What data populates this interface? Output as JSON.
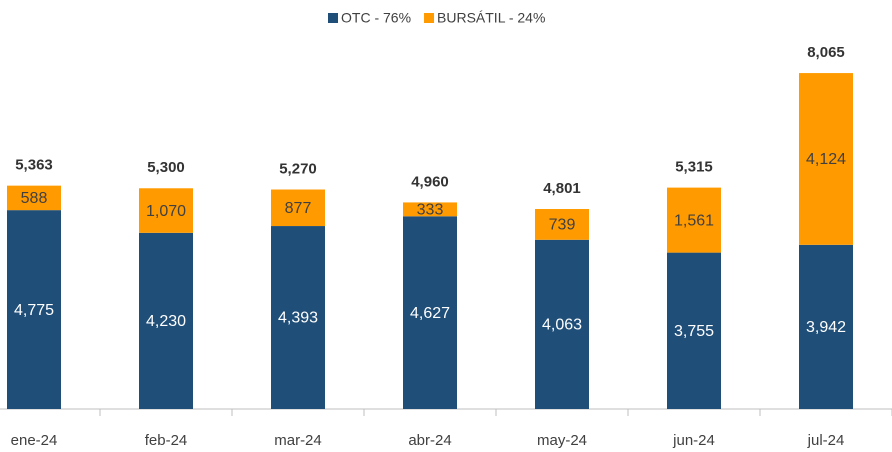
{
  "chart_data": {
    "type": "stacked_bar",
    "categories": [
      "ene-24",
      "feb-24",
      "mar-24",
      "abr-24",
      "may-24",
      "jun-24",
      "jul-24"
    ],
    "series": [
      {
        "name": "OTC - 76%",
        "color": "#1f4e79",
        "values": [
          4775,
          4230,
          4393,
          4627,
          4063,
          3755,
          3942
        ],
        "value_labels": [
          "4,775",
          "4,230",
          "4,393",
          "4,627",
          "4,063",
          "3,755",
          "3,942"
        ]
      },
      {
        "name": "BURSÁTIL - 24%",
        "color": "#ff9b00",
        "values": [
          588,
          1070,
          877,
          333,
          739,
          1561,
          4124
        ],
        "value_labels": [
          "588",
          "1,070",
          "877",
          "333",
          "739",
          "1,561",
          "4,124"
        ]
      }
    ],
    "totals": [
      5363,
      5300,
      5270,
      4960,
      4801,
      5315,
      8065
    ],
    "total_labels": [
      "5,363",
      "5,300",
      "5,270",
      "4,960",
      "4,801",
      "5,315",
      "8,065"
    ],
    "ylim": [
      0,
      8500
    ],
    "legend": "top"
  }
}
